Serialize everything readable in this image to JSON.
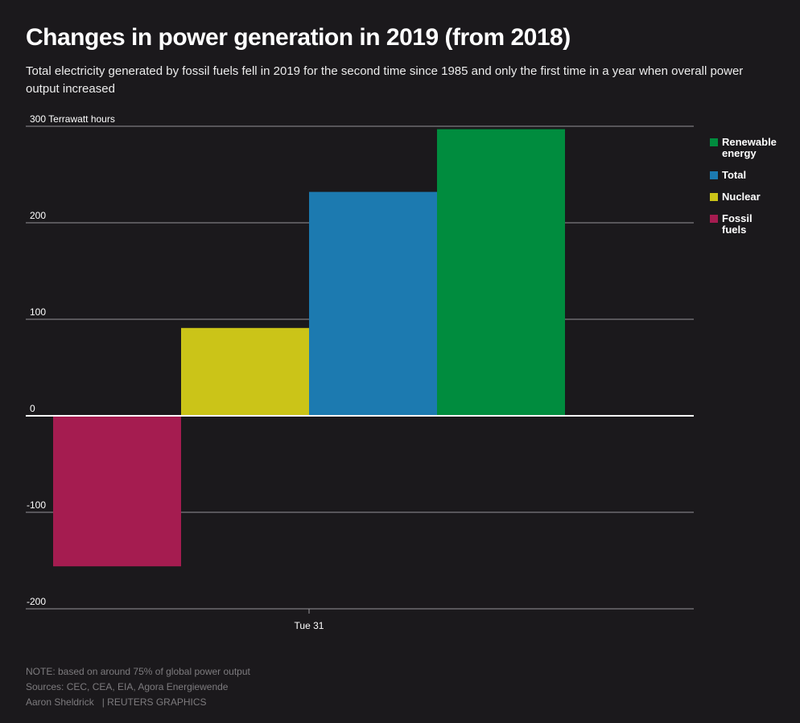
{
  "header": {
    "title": "Changes in power generation in 2019 (from 2018)",
    "subtitle": "Total electricity generated by fossil fuels fell in 2019 for the second time since 1985 and only the first time in a year when overall power output increased"
  },
  "chart_data": {
    "type": "bar",
    "title": "Changes in power generation in 2019 (from 2018)",
    "ylabel": "Terrawatt hours",
    "ylim": [
      -200,
      300
    ],
    "yticks": [
      300,
      200,
      100,
      0,
      -100,
      -200
    ],
    "ytick_labels": [
      "300 Terrawatt hours",
      "200",
      "100",
      "0",
      "-100",
      "-200"
    ],
    "xtick_label": "Tue 31",
    "grid": true,
    "legend_position": "right",
    "series": [
      {
        "name": "Fossil fuels",
        "value": -156,
        "color": "#a51c50"
      },
      {
        "name": "Nuclear",
        "value": 91,
        "color": "#cbc418"
      },
      {
        "name": "Total",
        "value": 232,
        "color": "#1c7ab0"
      },
      {
        "name": "Renewable energy",
        "value": 297,
        "color": "#008c3e"
      }
    ]
  },
  "legend": {
    "items": [
      {
        "label": "Renewable energy",
        "color": "#008c3e"
      },
      {
        "label": "Total",
        "color": "#1c7ab0"
      },
      {
        "label": "Nuclear",
        "color": "#cbc418"
      },
      {
        "label": "Fossil fuels",
        "color": "#a51c50"
      }
    ]
  },
  "footer": {
    "note": "NOTE: based on around 75% of global power output",
    "sources": "Sources: CEC, CEA, EIA, Agora Energiewende",
    "author": "Aaron Sheldrick",
    "credit": "| REUTERS GRAPHICS"
  }
}
